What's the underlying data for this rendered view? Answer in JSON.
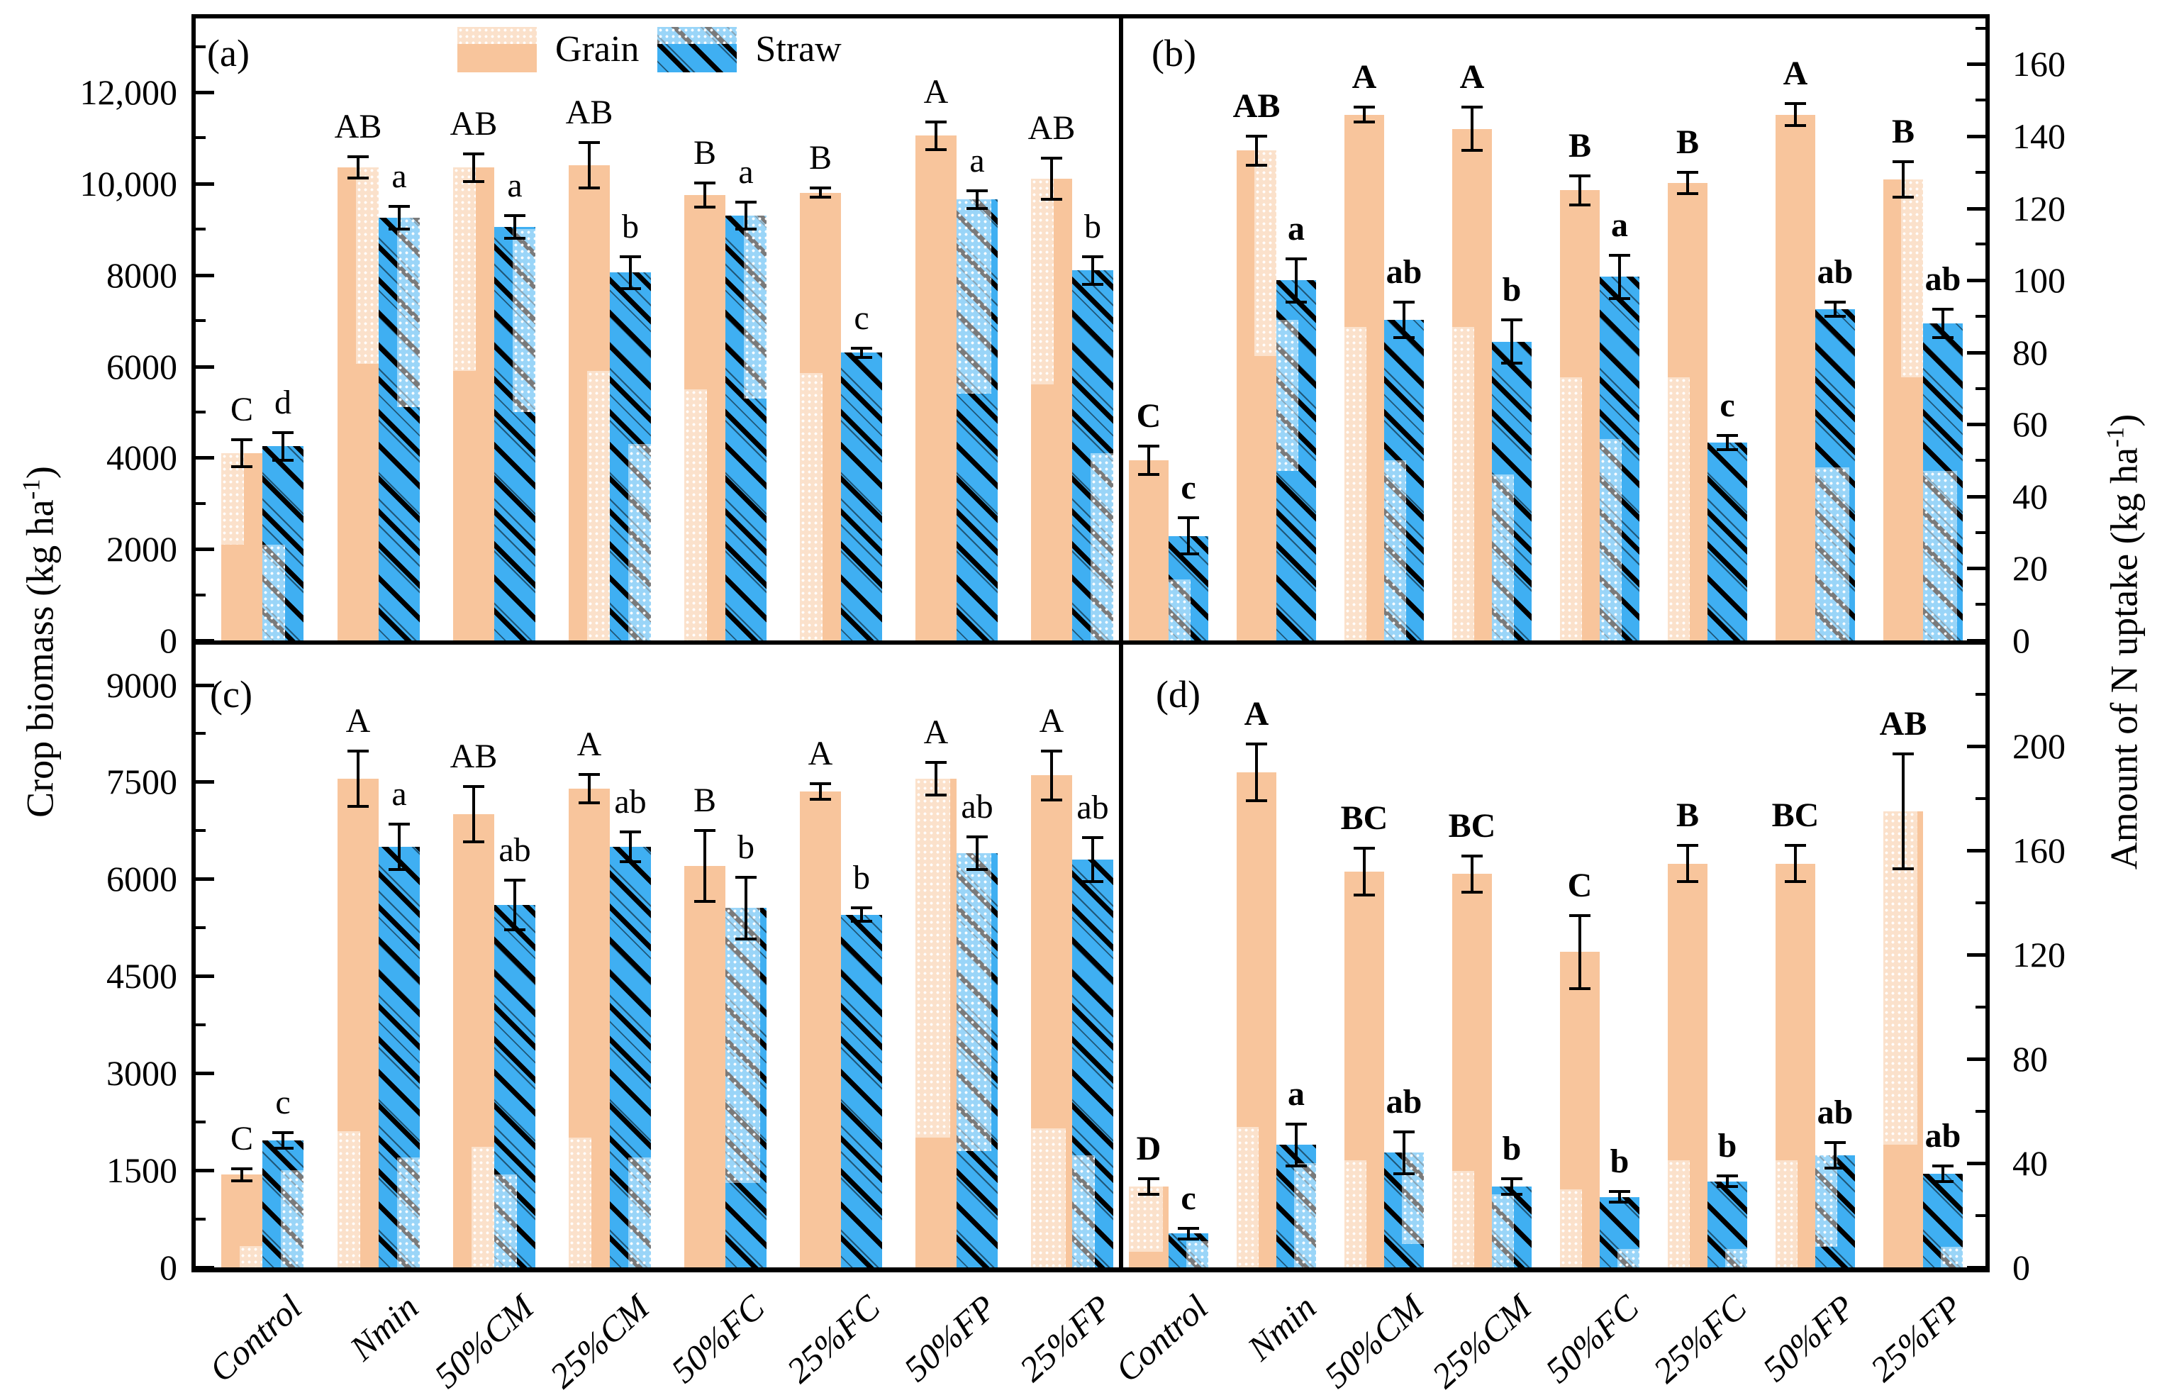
{
  "figure": {
    "legend": {
      "items": [
        {
          "label": "Grain",
          "color": "#F8C59C"
        },
        {
          "label": "Straw",
          "color": "#3FAFF2"
        }
      ]
    },
    "axes": {
      "left_title": {
        "pre": "Crop biomass (kg ha",
        "sup": "-1",
        "post": ")"
      },
      "right_title": {
        "pre": "Amount of N uptake (kg ha",
        "sup": "-1",
        "post": ")"
      }
    },
    "colors": {
      "grain": "#F8C59C",
      "straw": "#3FAFF2",
      "line": "#000000"
    }
  },
  "chart_data": {
    "type": "bar",
    "categories": [
      "Control",
      "Nmin",
      "50%CM",
      "25%CM",
      "50%FC",
      "25%FC",
      "50%FP",
      "25%FP"
    ],
    "legend_entries": [
      "Grain",
      "Straw"
    ],
    "panels": [
      {
        "id": "(a)",
        "position": "top-left",
        "metric": "Crop biomass (kg ha-1)",
        "axis_side": "left",
        "ylim": [
          0,
          13615
        ],
        "ytick_step": 2000,
        "ytick_labels": [
          "0",
          "2000",
          "4000",
          "6000",
          "8000",
          "10,000",
          "12,000"
        ],
        "series": [
          {
            "name": "Grain",
            "values": [
              4100,
              10350,
              10350,
              10400,
              9750,
              9800,
              11050,
              10100
            ],
            "errors": [
              300,
              230,
              300,
              500,
              270,
              100,
              300,
              450
            ],
            "letters": [
              "C",
              "AB",
              "AB",
              "AB",
              "B",
              "B",
              "A",
              "AB"
            ],
            "overlays": [
              [
                "l",
                2100,
                4100
              ],
              [
                "r",
                6050,
                10350
              ],
              [
                "l",
                5900,
                10350
              ],
              [
                "r",
                0,
                5900
              ],
              [
                "l",
                0,
                5500
              ],
              [
                "l",
                0,
                5850
              ],
              null,
              [
                "l",
                5600,
                10100
              ]
            ]
          },
          {
            "name": "Straw",
            "values": [
              4250,
              9250,
              9050,
              8050,
              9300,
              6300,
              9650,
              8100
            ],
            "errors": [
              300,
              250,
              250,
              350,
              300,
              100,
              200,
              300
            ],
            "letters": [
              "d",
              "a",
              "a",
              "b",
              "a",
              "c",
              "a",
              "b"
            ],
            "overlays": [
              [
                "l",
                0,
                2100
              ],
              [
                "r",
                5100,
                9250
              ],
              [
                "r",
                5000,
                9000
              ],
              [
                "r",
                0,
                4300
              ],
              [
                "r",
                5300,
                9300
              ],
              null,
              [
                "w",
                5400,
                9650
              ],
              [
                "r",
                0,
                4100
              ]
            ]
          }
        ]
      },
      {
        "id": "(b)",
        "position": "top-right",
        "metric": "Amount of N uptake (kg ha-1)",
        "axis_side": "right",
        "ylim": [
          0,
          172.7
        ],
        "ytick_step": 20,
        "ytick_labels": [
          "0",
          "20",
          "40",
          "60",
          "80",
          "100",
          "120",
          "140",
          "160"
        ],
        "series": [
          {
            "name": "Grain",
            "values": [
              50,
              136,
              146,
              142,
              125,
              127,
              146,
              128
            ],
            "errors": [
              4,
              4,
              2,
              6,
              4,
              3,
              3,
              5
            ],
            "letters": [
              "C",
              "AB",
              "A",
              "A",
              "B",
              "B",
              "A",
              "B"
            ],
            "overlays": [
              null,
              [
                "r",
                79,
                136
              ],
              [
                "l",
                0,
                87
              ],
              [
                "l",
                0,
                87
              ],
              [
                "l",
                0,
                73
              ],
              [
                "l",
                0,
                73
              ],
              null,
              [
                "r",
                73,
                128
              ]
            ]
          },
          {
            "name": "Straw",
            "values": [
              29,
              100,
              89,
              83,
              101,
              55,
              92,
              88
            ],
            "errors": [
              5,
              6,
              5,
              6,
              6,
              2,
              2,
              4
            ],
            "letters": [
              "c",
              "a",
              "ab",
              "b",
              "a",
              "c",
              "ab",
              "ab"
            ],
            "overlays": [
              [
                "l",
                0,
                17
              ],
              [
                "l",
                47,
                89
              ],
              [
                "l",
                0,
                50
              ],
              [
                "l",
                0,
                46
              ],
              [
                "l",
                0,
                56
              ],
              null,
              [
                "w",
                0,
                48
              ],
              [
                "w",
                0,
                47
              ]
            ]
          }
        ]
      },
      {
        "id": "(c)",
        "position": "bottom-left",
        "metric": "Crop biomass (kg ha-1)",
        "axis_side": "left",
        "ylim": [
          0,
          9620
        ],
        "ytick_step": 1500,
        "ytick_labels": [
          "0",
          "1500",
          "3000",
          "4500",
          "6000",
          "7500",
          "9000"
        ],
        "series": [
          {
            "name": "Grain",
            "values": [
              1430,
              7550,
              7000,
              7400,
              6200,
              7350,
              7550,
              7600
            ],
            "errors": [
              90,
              430,
              430,
              220,
              550,
              120,
              250,
              380
            ],
            "letters": [
              "C",
              "A",
              "AB",
              "A",
              "B",
              "A",
              "A",
              "A"
            ],
            "overlays": [
              [
                "r",
                0,
                330
              ],
              [
                "l",
                0,
                2100
              ],
              [
                "r",
                0,
                1860
              ],
              [
                "l",
                0,
                2000
              ],
              null,
              null,
              [
                "w",
                2000,
                7550
              ],
              [
                "w",
                0,
                2150
              ]
            ]
          },
          {
            "name": "Straw",
            "values": [
              1960,
              6500,
              5600,
              6500,
              5550,
              5450,
              6400,
              6300
            ],
            "errors": [
              120,
              350,
              380,
              230,
              480,
              100,
              250,
              340
            ],
            "letters": [
              "c",
              "a",
              "ab",
              "ab",
              "b",
              "b",
              "ab",
              "ab"
            ],
            "overlays": [
              [
                "r",
                0,
                1500
              ],
              [
                "r",
                0,
                1700
              ],
              [
                "l",
                0,
                1440
              ],
              [
                "r",
                0,
                1700
              ],
              [
                "w",
                1300,
                5550
              ],
              null,
              [
                "w",
                1800,
                6400
              ],
              [
                "l",
                0,
                1730
              ]
            ]
          }
        ]
      },
      {
        "id": "(d)",
        "position": "bottom-right",
        "metric": "Amount of N uptake (kg ha-1)",
        "axis_side": "right",
        "ylim": [
          0,
          239
        ],
        "ytick_step": 40,
        "ytick_labels": [
          "0",
          "40",
          "80",
          "120",
          "160",
          "200"
        ],
        "series": [
          {
            "name": "Grain",
            "values": [
              31,
              190,
              152,
              151,
              121,
              155,
              155,
              175
            ],
            "errors": [
              3,
              11,
              9,
              7,
              14,
              7,
              7,
              22
            ],
            "letters": [
              "D",
              "A",
              "BC",
              "BC",
              "C",
              "B",
              "BC",
              "AB"
            ],
            "overlays": [
              [
                "w",
                6,
                31
              ],
              [
                "l",
                0,
                54
              ],
              [
                "l",
                0,
                41
              ],
              [
                "l",
                0,
                37
              ],
              [
                "l",
                0,
                30
              ],
              [
                "l",
                0,
                41
              ],
              [
                "l",
                0,
                41
              ],
              [
                "w",
                47,
                175
              ]
            ]
          },
          {
            "name": "Straw",
            "values": [
              13,
              47,
              44,
              31,
              27,
              33,
              43,
              36
            ],
            "errors": [
              2,
              8,
              8,
              3,
              2,
              2,
              5,
              3
            ],
            "letters": [
              "c",
              "a",
              "ab",
              "b",
              "b",
              "b",
              "ab",
              "ab"
            ],
            "overlays": [
              [
                "r",
                0,
                10
              ],
              [
                "r",
                0,
                40
              ],
              [
                "r",
                9,
                44
              ],
              [
                "l",
                0,
                28
              ],
              [
                "r",
                0,
                7
              ],
              [
                "r",
                0,
                7
              ],
              [
                "l",
                8,
                44
              ],
              [
                "r",
                0,
                8
              ]
            ]
          }
        ]
      }
    ]
  }
}
